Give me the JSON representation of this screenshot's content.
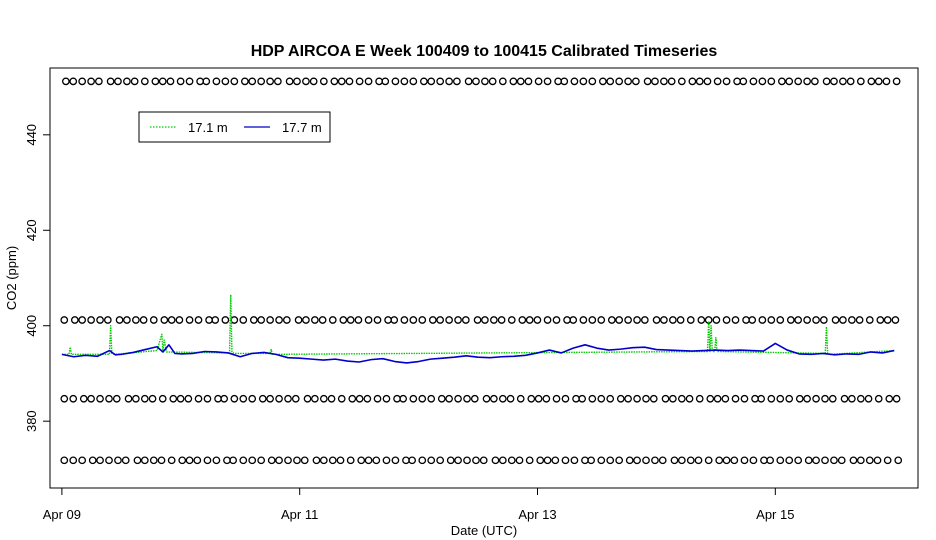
{
  "chart_data": {
    "type": "line",
    "title": "HDP AIRCOA E  Week 100409 to 100415  Calibrated Timeseries",
    "xlabel": "Date (UTC)",
    "ylabel": "CO2 (ppm)",
    "xlim": [
      -0.1,
      7.2
    ],
    "ylim": [
      366,
      454
    ],
    "x_ticks": [
      {
        "value": 0,
        "label": "Apr 09"
      },
      {
        "value": 2,
        "label": "Apr 11"
      },
      {
        "value": 4,
        "label": "Apr 13"
      },
      {
        "value": 6,
        "label": "Apr 15"
      }
    ],
    "y_ticks": [
      380,
      400,
      420,
      440
    ],
    "grid": false,
    "legend": {
      "placement": "top-left",
      "entries": [
        {
          "label": "17.1 m",
          "color": "#00cc00",
          "style": "dotted"
        },
        {
          "label": "17.7 m",
          "color": "#0000cc",
          "style": "solid"
        }
      ]
    },
    "marker_rows": [
      451.2,
      401.2,
      384.7,
      371.8
    ],
    "marker_x_range": [
      0.02,
      7.02
    ],
    "series": [
      {
        "name": "17.7 m",
        "color": "#0000cc",
        "x": [
          0.0,
          0.1,
          0.2,
          0.3,
          0.4,
          0.45,
          0.5,
          0.6,
          0.7,
          0.8,
          0.85,
          0.9,
          0.95,
          1.0,
          1.1,
          1.2,
          1.3,
          1.4,
          1.5,
          1.6,
          1.7,
          1.8,
          1.9,
          2.0,
          2.1,
          2.2,
          2.3,
          2.4,
          2.5,
          2.6,
          2.7,
          2.8,
          2.9,
          3.0,
          3.1,
          3.2,
          3.3,
          3.4,
          3.5,
          3.6,
          3.7,
          3.8,
          3.9,
          4.0,
          4.1,
          4.2,
          4.3,
          4.4,
          4.5,
          4.6,
          4.7,
          4.8,
          4.9,
          5.0,
          5.1,
          5.2,
          5.3,
          5.4,
          5.5,
          5.6,
          5.7,
          5.8,
          5.9,
          6.0,
          6.1,
          6.2,
          6.3,
          6.4,
          6.5,
          6.6,
          6.7,
          6.8,
          6.9,
          7.0
        ],
        "y": [
          394.0,
          393.5,
          393.8,
          393.6,
          394.8,
          393.9,
          394.0,
          394.4,
          395.0,
          395.6,
          394.5,
          396.0,
          394.2,
          394.1,
          394.2,
          394.6,
          394.5,
          394.3,
          393.5,
          394.2,
          394.4,
          394.0,
          393.3,
          393.2,
          393.0,
          392.8,
          393.0,
          392.6,
          392.4,
          392.9,
          393.1,
          392.5,
          392.2,
          392.5,
          393.0,
          393.2,
          393.4,
          393.7,
          393.4,
          393.3,
          393.5,
          393.6,
          393.8,
          394.3,
          394.9,
          394.3,
          395.3,
          396.0,
          395.3,
          394.9,
          395.1,
          395.4,
          395.5,
          395.0,
          394.9,
          394.8,
          394.7,
          394.8,
          394.9,
          394.8,
          394.9,
          394.8,
          394.7,
          396.3,
          394.9,
          394.1,
          394.0,
          394.2,
          393.9,
          394.1,
          394.0,
          394.5,
          394.3,
          394.8
        ]
      },
      {
        "name": "17.1 m",
        "color": "#00cc00",
        "x": [
          0.0,
          0.06,
          0.07,
          0.08,
          0.1,
          0.4,
          0.41,
          0.42,
          0.44,
          0.8,
          0.84,
          0.85,
          0.86,
          0.88,
          1.41,
          1.42,
          1.43,
          1.44,
          1.46,
          1.75,
          1.76,
          1.77,
          5.43,
          5.44,
          5.45,
          5.46,
          5.47,
          5.48,
          5.49,
          5.5,
          5.51,
          5.52,
          6.42,
          6.43,
          6.44,
          6.46,
          7.0
        ],
        "y": [
          394.0,
          394.0,
          395.5,
          394.0,
          394.0,
          394.0,
          400.0,
          394.2,
          394.0,
          394.8,
          398.2,
          394.5,
          397.0,
          394.5,
          394.3,
          406.5,
          394.5,
          394.3,
          394.2,
          394.2,
          395.0,
          394.0,
          394.6,
          401.0,
          394.6,
          400.0,
          394.6,
          394.6,
          394.6,
          397.5,
          394.6,
          394.6,
          394.2,
          399.8,
          394.2,
          394.0,
          394.8
        ]
      }
    ]
  }
}
